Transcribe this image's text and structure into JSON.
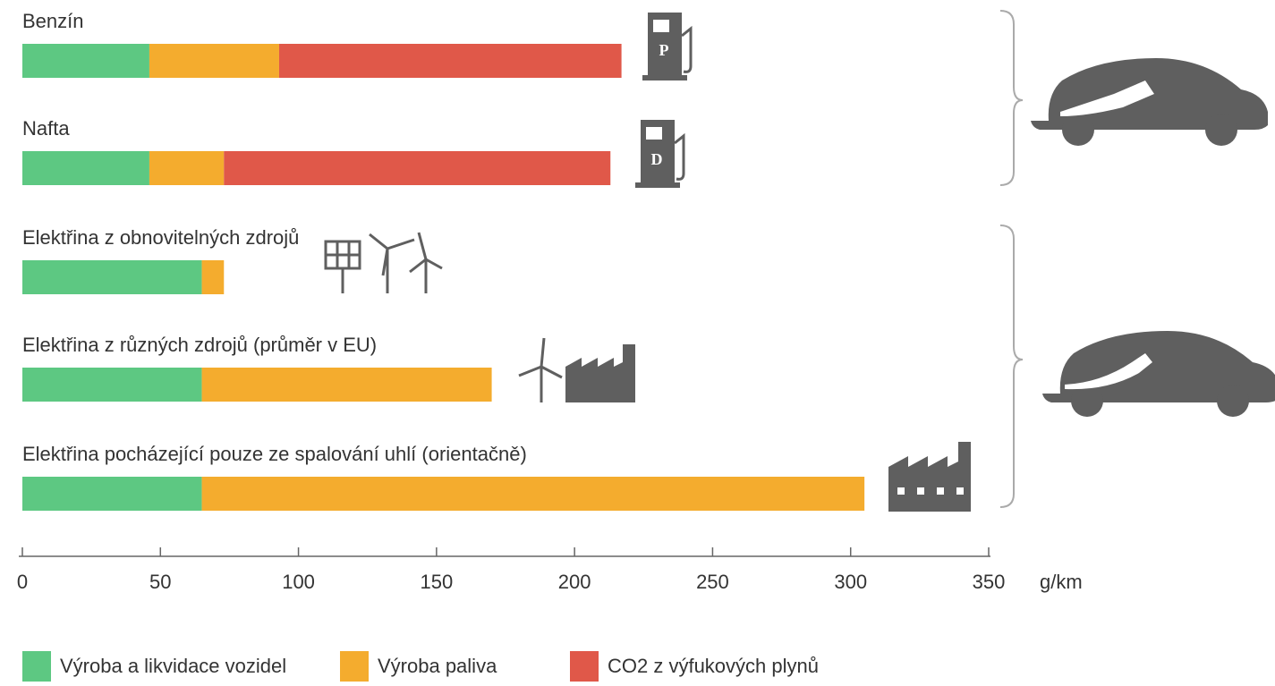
{
  "chart_data": {
    "type": "stacked-barh",
    "categories": [
      "Benzín",
      "Nafta",
      "Elektřina z obnovitelných zdrojů",
      "Elektřina z různých zdrojů (průměr v EU)",
      "Elektřina pocházející pouze ze spalování uhlí (orientačně)"
    ],
    "series": [
      {
        "name": "Výroba a likvidace vozidel",
        "color": "#5dc882",
        "values": [
          46,
          46,
          65,
          65,
          65
        ]
      },
      {
        "name": "Výroba paliva",
        "color": "#f4ac2e",
        "values": [
          47,
          27,
          8,
          105,
          240
        ]
      },
      {
        "name": "CO2 z výfukových plynů",
        "color": "#e05849",
        "values": [
          124,
          140,
          0,
          0,
          0
        ]
      }
    ],
    "xlim": [
      0,
      350
    ],
    "xticks": [
      0,
      50,
      100,
      150,
      200,
      250,
      300,
      350
    ],
    "x_label": "g/km",
    "legend": "bottom",
    "annotations": [
      "P",
      "D"
    ]
  }
}
